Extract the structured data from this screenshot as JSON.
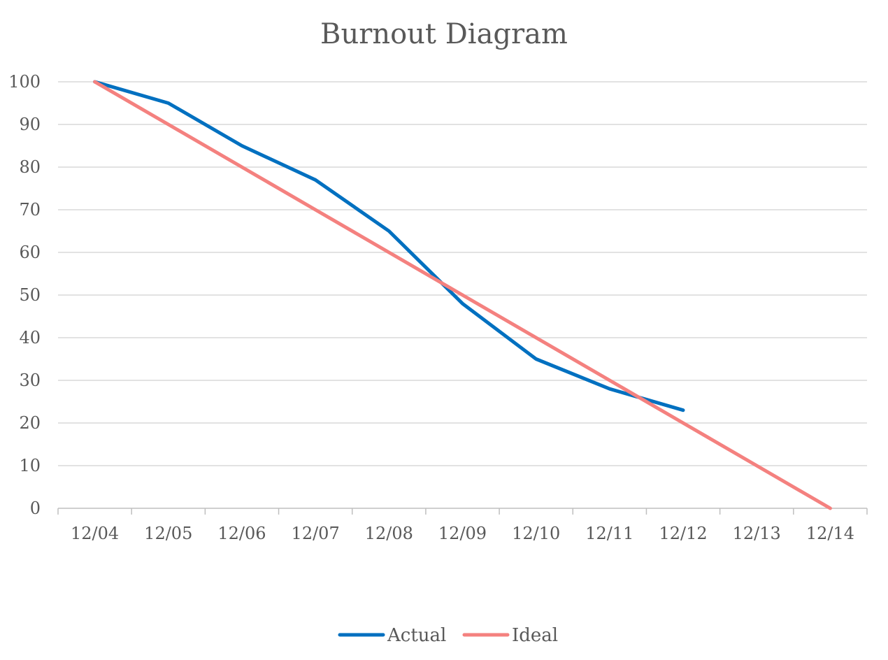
{
  "chart_data": {
    "type": "line",
    "title": "Burnout Diagram",
    "xlabel": "",
    "ylabel": "",
    "categories": [
      "12/04",
      "12/05",
      "12/06",
      "12/07",
      "12/08",
      "12/09",
      "12/10",
      "12/11",
      "12/12",
      "12/13",
      "12/14"
    ],
    "ylim": [
      0,
      100
    ],
    "yticks": [
      0,
      10,
      20,
      30,
      40,
      50,
      60,
      70,
      80,
      90,
      100
    ],
    "grid": true,
    "legend": "bottom",
    "series": [
      {
        "name": "Actual",
        "color": "#0070c0",
        "values": [
          100,
          95,
          85,
          77,
          65,
          48,
          35,
          28,
          23,
          null,
          null
        ]
      },
      {
        "name": "Ideal",
        "color": "#f4817f",
        "values": [
          100,
          90,
          80,
          70,
          60,
          50,
          40,
          30,
          20,
          10,
          0
        ]
      }
    ]
  }
}
